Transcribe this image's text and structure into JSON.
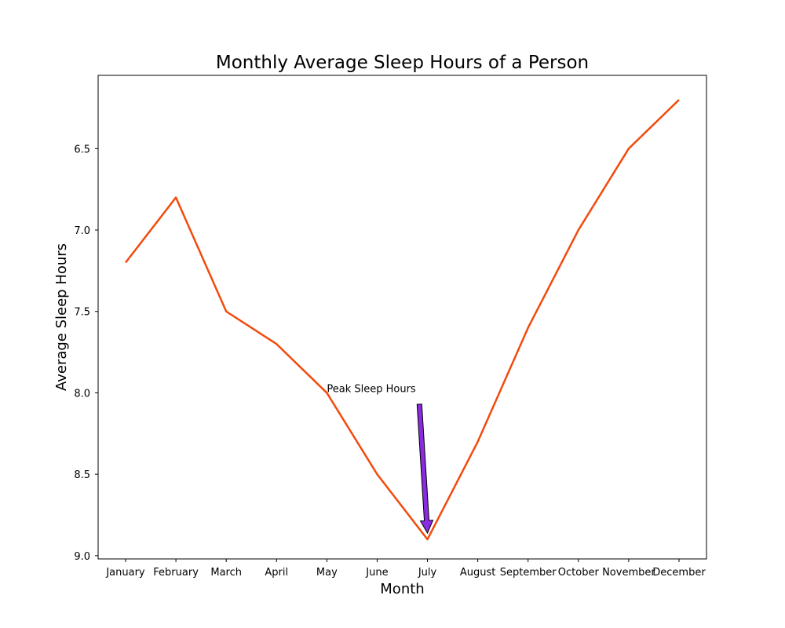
{
  "chart_data": {
    "type": "line",
    "title": "Monthly Average Sleep Hours of a Person",
    "xlabel": "Month",
    "ylabel": "Average Sleep Hours",
    "categories": [
      "January",
      "February",
      "March",
      "April",
      "May",
      "June",
      "July",
      "August",
      "September",
      "October",
      "November",
      "December"
    ],
    "series": [
      {
        "values": [
          7.2,
          6.8,
          7.5,
          7.7,
          8.0,
          8.5,
          8.9,
          8.3,
          7.6,
          7.0,
          6.5,
          6.2
        ],
        "color": "#f24a0c"
      }
    ],
    "ylim": [
      9.02,
      6.05
    ],
    "y_axis_inverted": true,
    "yticks": [
      "6.5",
      "7.0",
      "7.5",
      "8.0",
      "8.5",
      "9.0"
    ],
    "grid": false,
    "annotation": {
      "text": "Peak Sleep Hours",
      "text_position": {
        "category": "May",
        "y": 8.0
      },
      "arrow_tail": {
        "category_index": 5.84,
        "y": 8.07
      },
      "arrow_target": {
        "category": "July",
        "y": 8.9
      },
      "arrow_color": "#8a2be2"
    }
  }
}
